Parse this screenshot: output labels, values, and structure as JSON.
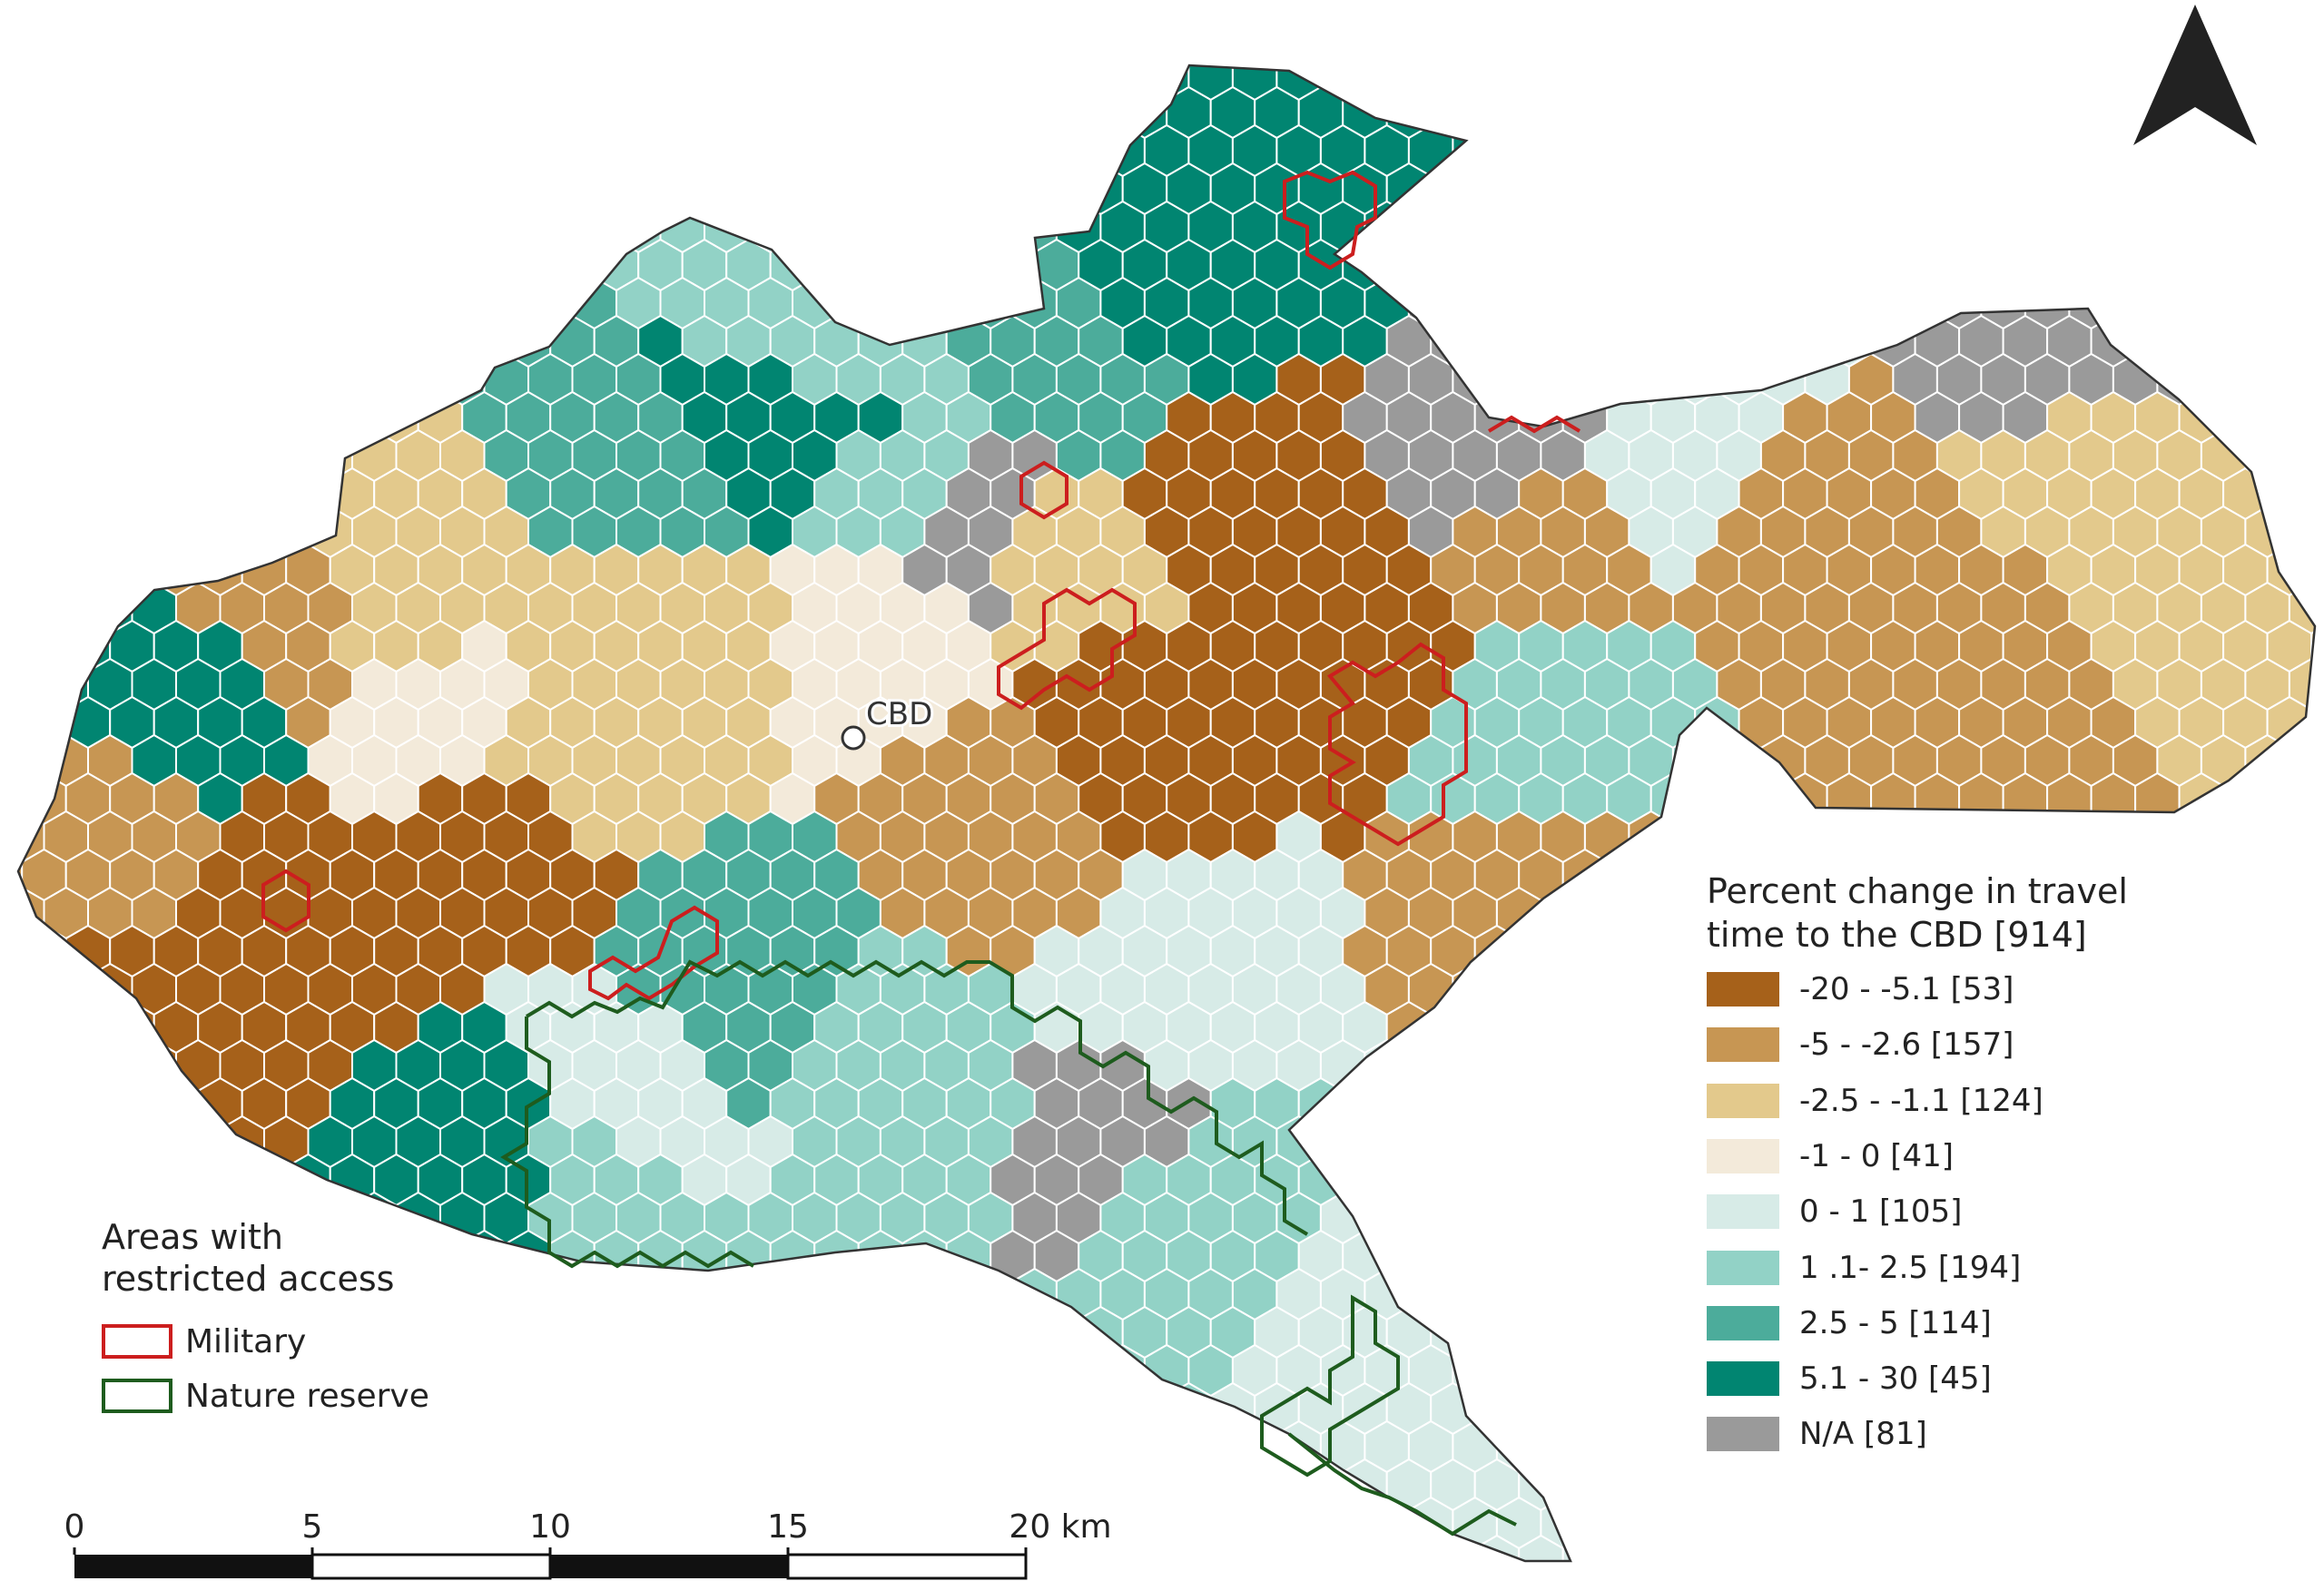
{
  "map": {
    "landmark": {
      "label": "CBD"
    },
    "north_arrow": {
      "name": "north-arrow-icon"
    }
  },
  "legend": {
    "title": "Percent change in travel\ntime to the CBD [914]",
    "classes": [
      {
        "label": "-20 - -5.1 [53]",
        "color": "#a6611a"
      },
      {
        "label": "-5 - -2.6 [157]",
        "color": "#c79653"
      },
      {
        "label": "-2.5 - -1.1 [124]",
        "color": "#e3c98c"
      },
      {
        "label": "-1 - 0 [41]",
        "color": "#f3eada"
      },
      {
        "label": "0 - 1 [105]",
        "color": "#d7ebe7"
      },
      {
        "label": "1 .1- 2.5 [194]",
        "color": "#92d2c6"
      },
      {
        "label": "2.5 - 5 [114]",
        "color": "#4cac9b"
      },
      {
        "label": "5.1 - 30 [45]",
        "color": "#018571"
      },
      {
        "label": "N/A [81]",
        "color": "#9a9a9a"
      }
    ]
  },
  "restricted": {
    "title": "Areas with\nrestricted access",
    "items": [
      {
        "label": "Military",
        "color": "#cc1e1e"
      },
      {
        "label": "Nature reserve",
        "color": "#1e5c1e"
      }
    ]
  },
  "scale_bar": {
    "ticks": [
      "0",
      "5",
      "10",
      "15",
      "20 km"
    ]
  }
}
